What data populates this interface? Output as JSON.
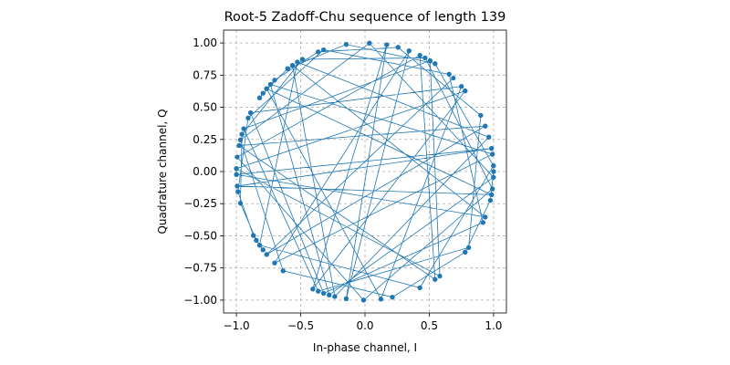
{
  "chart_data": {
    "type": "line",
    "title": "Root-5 Zadoff-Chu sequence of length 139",
    "x_label": "In-phase channel, I",
    "y_label": "Quadrature channel, Q",
    "color": "#1f77b4",
    "markers": true,
    "grid": true,
    "xlim": [
      -1.1,
      1.1
    ],
    "ylim": [
      -1.1,
      1.1
    ],
    "xticks": [
      {
        "value": -1.0,
        "label": "−1.0"
      },
      {
        "value": -0.5,
        "label": "−0.5"
      },
      {
        "value": 0.0,
        "label": "0.0"
      },
      {
        "value": 0.5,
        "label": "0.5"
      },
      {
        "value": 1.0,
        "label": "1.0"
      }
    ],
    "yticks": [
      {
        "value": -1.0,
        "label": "−1.00"
      },
      {
        "value": -0.75,
        "label": "−0.75"
      },
      {
        "value": -0.5,
        "label": "−0.50"
      },
      {
        "value": -0.25,
        "label": "−0.25"
      },
      {
        "value": 0.0,
        "label": "0.00"
      },
      {
        "value": 0.25,
        "label": "0.25"
      },
      {
        "value": 0.5,
        "label": "0.50"
      },
      {
        "value": 0.75,
        "label": "0.75"
      },
      {
        "value": 1.0,
        "label": "1.00"
      }
    ],
    "x": [
      1,
      0.975,
      0.779,
      0.213,
      -0.637,
      -0.969,
      0.034,
      0.999,
      -0.279,
      -0.735,
      0.991,
      -0.703,
      0.343,
      -0.146,
      0.169,
      -0.406,
      0.779,
      -1.0,
      0.582,
      0.506,
      -0.943,
      -0.364,
      0.806,
      0.9,
      0.257,
      -0.364,
      -0.703,
      -0.82,
      -0.793,
      -0.601,
      -0.146,
      0.545,
      0.999,
      0.427,
      -0.82,
      -0.526,
      0.963,
      -0.235,
      -0.564,
      0.935,
      -1.0,
      0.984,
      -0.994,
      0.984,
      -0.765,
      0.124,
      0.75,
      -0.89,
      -0.322,
      0.918,
      0.654,
      -0.322,
      -0.909,
      -0.988,
      -0.868,
      -0.793,
      -0.845,
      -0.969,
      -0.957,
      -0.487,
      0.467,
      0.991,
      -0.011,
      -0.994,
      0.427,
      0.545,
      -0.979,
      0.935,
      -0.765,
      0.687,
      -0.765,
      0.935,
      -0.979,
      0.545,
      0.427,
      -0.994,
      -0.011,
      0.991,
      0.467,
      -0.487,
      -0.957,
      -0.969,
      -0.845,
      -0.793,
      -0.868,
      -0.988,
      -0.909,
      -0.322,
      0.654,
      0.918,
      -0.322,
      -0.89,
      0.75,
      0.124,
      -0.765,
      0.984,
      -0.994,
      0.984,
      -1.0,
      0.935,
      -0.564,
      -0.235,
      0.963,
      -0.526,
      -0.82,
      0.427,
      0.999,
      0.545,
      -0.146,
      -0.601,
      -0.793,
      -0.82,
      -0.703,
      -0.364,
      0.257,
      0.9,
      0.806,
      -0.364,
      -0.943,
      0.506,
      0.582,
      -1.0,
      0.779,
      -0.406,
      0.169,
      -0.146,
      0.343,
      -0.703,
      0.991,
      -0.735,
      -0.279,
      0.999,
      0.034,
      -0.969,
      -0.637,
      0.213,
      0.779,
      0.975,
      1
    ],
    "values": [
      0,
      -0.224,
      -0.627,
      -0.977,
      -0.772,
      0.246,
      0.999,
      -0.045,
      -0.96,
      0.678,
      0.135,
      -0.711,
      0.939,
      -0.989,
      0.986,
      -0.914,
      0.627,
      0.023,
      -0.813,
      0.862,
      0.333,
      -0.931,
      -0.591,
      0.437,
      0.966,
      0.931,
      0.711,
      0.573,
      0.609,
      0.8,
      0.989,
      0.839,
      0.045,
      -0.904,
      -0.573,
      0.851,
      0.268,
      -0.972,
      0.826,
      -0.354,
      -0.023,
      0.18,
      -0.113,
      -0.18,
      0.645,
      -0.992,
      0.662,
      0.457,
      -0.947,
      -0.396,
      0.757,
      0.947,
      0.416,
      -0.157,
      -0.497,
      -0.609,
      -0.535,
      -0.246,
      0.29,
      0.873,
      0.884,
      -0.135,
      -1.0,
      0.113,
      0.904,
      -0.839,
      0.202,
      0.354,
      -0.645,
      0.727,
      -0.645,
      0.354,
      0.202,
      -0.839,
      0.904,
      0.113,
      -1.0,
      -0.135,
      0.884,
      0.873,
      0.29,
      -0.246,
      -0.535,
      -0.609,
      -0.497,
      -0.157,
      0.416,
      0.947,
      0.757,
      -0.396,
      -0.947,
      0.457,
      0.662,
      -0.992,
      0.645,
      -0.18,
      -0.113,
      0.18,
      -0.023,
      -0.354,
      0.826,
      -0.972,
      0.268,
      0.851,
      -0.573,
      -0.904,
      0.045,
      0.839,
      0.989,
      0.8,
      0.609,
      0.573,
      0.711,
      0.931,
      0.966,
      0.437,
      -0.591,
      -0.931,
      0.333,
      0.862,
      -0.813,
      0.023,
      0.627,
      -0.914,
      0.986,
      -0.989,
      0.939,
      -0.711,
      0.135,
      0.678,
      -0.96,
      -0.045,
      0.999,
      0.246,
      -0.772,
      -0.977,
      -0.627,
      -0.224,
      0
    ]
  }
}
